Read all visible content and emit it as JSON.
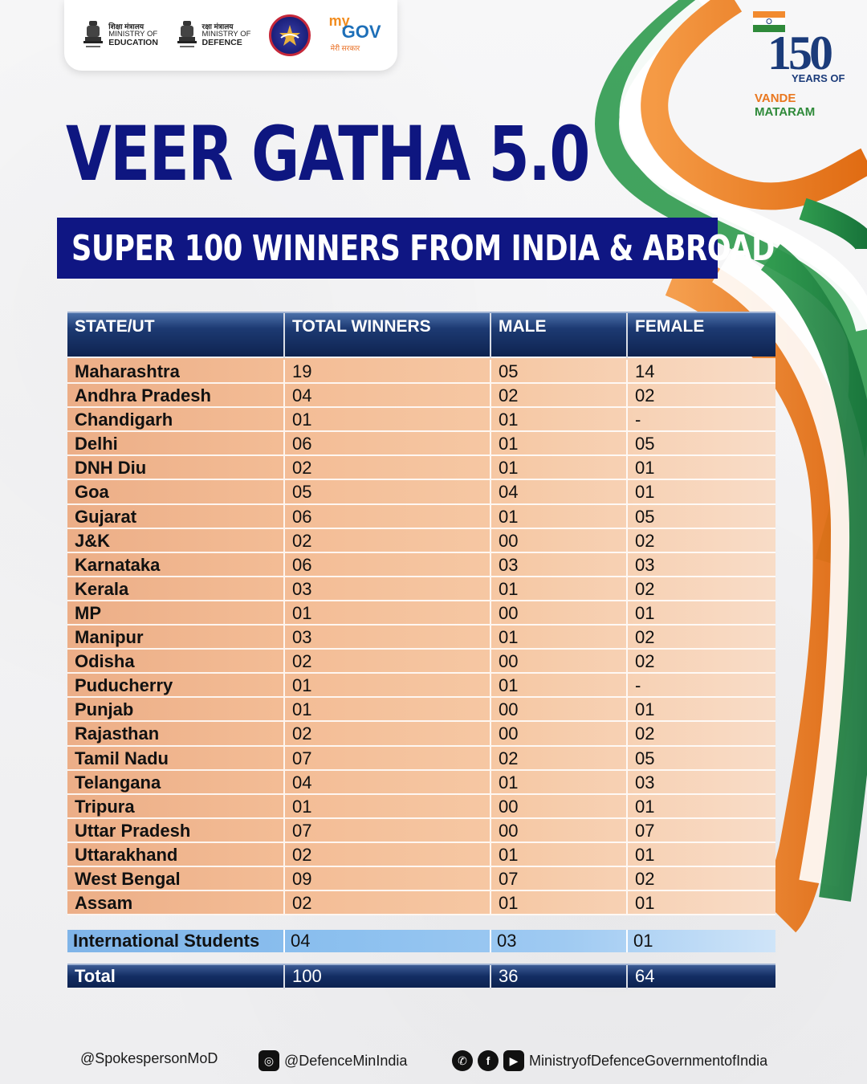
{
  "logos": {
    "education": {
      "hindi": "शिक्षा मंत्रालय",
      "line1": "MINISTRY OF",
      "line2": "EDUCATION",
      "motto": "सत्यमेव जयते",
      "icon": "ashoka-emblem-icon"
    },
    "defence": {
      "hindi": "रक्षा मंत्रालय",
      "line1": "MINISTRY OF",
      "line2": "DEFENCE",
      "motto": "सत्यमेव जयते",
      "icon": "ashoka-emblem-icon"
    },
    "tri_service": {
      "icon": "tri-service-crest-icon"
    },
    "mygov": {
      "my": "my",
      "gov": "GOV",
      "tagline": "मेरी सरकार"
    }
  },
  "badge": {
    "number": "150",
    "years": "YEARS OF",
    "vande": "VANDE",
    "mataram": "MATARAM"
  },
  "title": "VEER GATHA 5.0",
  "subtitle": "SUPER 100 WINNERS FROM INDIA & ABROAD",
  "table": {
    "headers": [
      "STATE/UT",
      "TOTAL WINNERS",
      "MALE",
      "FEMALE"
    ],
    "rows": [
      [
        "Maharashtra",
        "19",
        "05",
        "14"
      ],
      [
        "Andhra Pradesh",
        "04",
        "02",
        "02"
      ],
      [
        "Chandigarh",
        "01",
        "01",
        "-"
      ],
      [
        "Delhi",
        "06",
        "01",
        "05"
      ],
      [
        "DNH Diu",
        "02",
        "01",
        "01"
      ],
      [
        "Goa",
        "05",
        "04",
        "01"
      ],
      [
        "Gujarat",
        "06",
        "01",
        "05"
      ],
      [
        "J&K",
        "02",
        "00",
        "02"
      ],
      [
        "Karnataka",
        "06",
        "03",
        "03"
      ],
      [
        "Kerala",
        "03",
        "01",
        "02"
      ],
      [
        "MP",
        "01",
        "00",
        "01"
      ],
      [
        "Manipur",
        "03",
        "01",
        "02"
      ],
      [
        "Odisha",
        "02",
        "00",
        "02"
      ],
      [
        "Puducherry",
        "01",
        "01",
        "-"
      ],
      [
        "Punjab",
        "01",
        "00",
        "01"
      ],
      [
        "Rajasthan",
        "02",
        "00",
        "02"
      ],
      [
        "Tamil Nadu",
        "07",
        "02",
        "05"
      ],
      [
        "Telangana",
        "04",
        "01",
        "03"
      ],
      [
        "Tripura",
        "01",
        "00",
        "01"
      ],
      [
        "Uttar Pradesh",
        "07",
        "00",
        "07"
      ],
      [
        "Uttarakhand",
        "02",
        "01",
        "01"
      ],
      [
        "West Bengal",
        "09",
        "07",
        "02"
      ],
      [
        "Assam",
        "02",
        "01",
        "01"
      ]
    ],
    "international": [
      "International Students",
      "04",
      "03",
      "01"
    ],
    "total": [
      "Total",
      "100",
      "36",
      "64"
    ]
  },
  "footer": {
    "x_handle": "@SpokespersonMoD",
    "instagram": "@DefenceMinIndia",
    "others": "MinistryofDefenceGovernmentofIndia",
    "icons": [
      "instagram-icon",
      "whatsapp-icon",
      "facebook-icon",
      "youtube-icon"
    ]
  },
  "colors": {
    "navy": "#0f1683",
    "saffron": "#f28a2e",
    "green": "#2f8a3a",
    "row_fill": "#f3bc95",
    "intl_fill": "#8cc0ef"
  }
}
